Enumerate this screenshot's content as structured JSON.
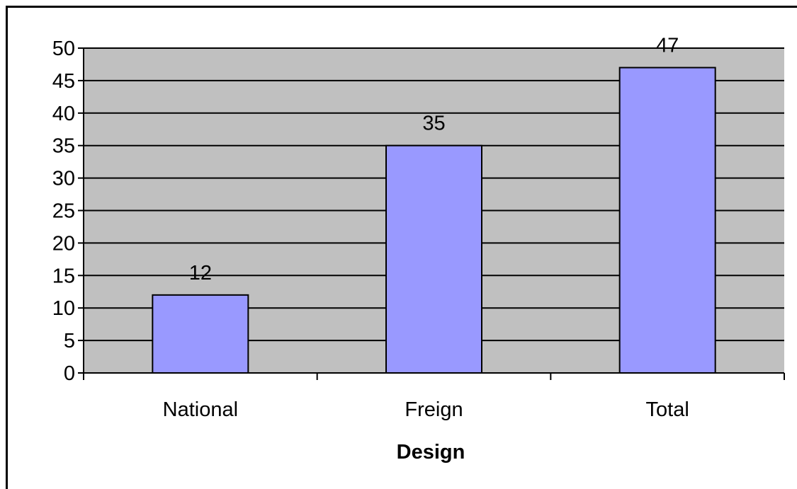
{
  "chart_data": {
    "type": "bar",
    "categories": [
      "National",
      "Freign",
      "Total"
    ],
    "values": [
      12,
      35,
      47
    ],
    "data_labels": [
      "12",
      "35",
      "47"
    ],
    "title": "",
    "xlabel": "Design",
    "ylabel": "",
    "ylim": [
      0,
      50
    ],
    "yticks": [
      0,
      5,
      10,
      15,
      20,
      25,
      30,
      35,
      40,
      45,
      50
    ],
    "ytick_labels": [
      "0",
      "5",
      "10",
      "15",
      "20",
      "25",
      "30",
      "35",
      "40",
      "45",
      "50"
    ],
    "grid": true,
    "legend": "none",
    "colors": {
      "plot_background": "#c0c0c0",
      "bar_fill": "#9999ff",
      "bar_stroke": "#000000",
      "gridline": "#000000"
    }
  }
}
